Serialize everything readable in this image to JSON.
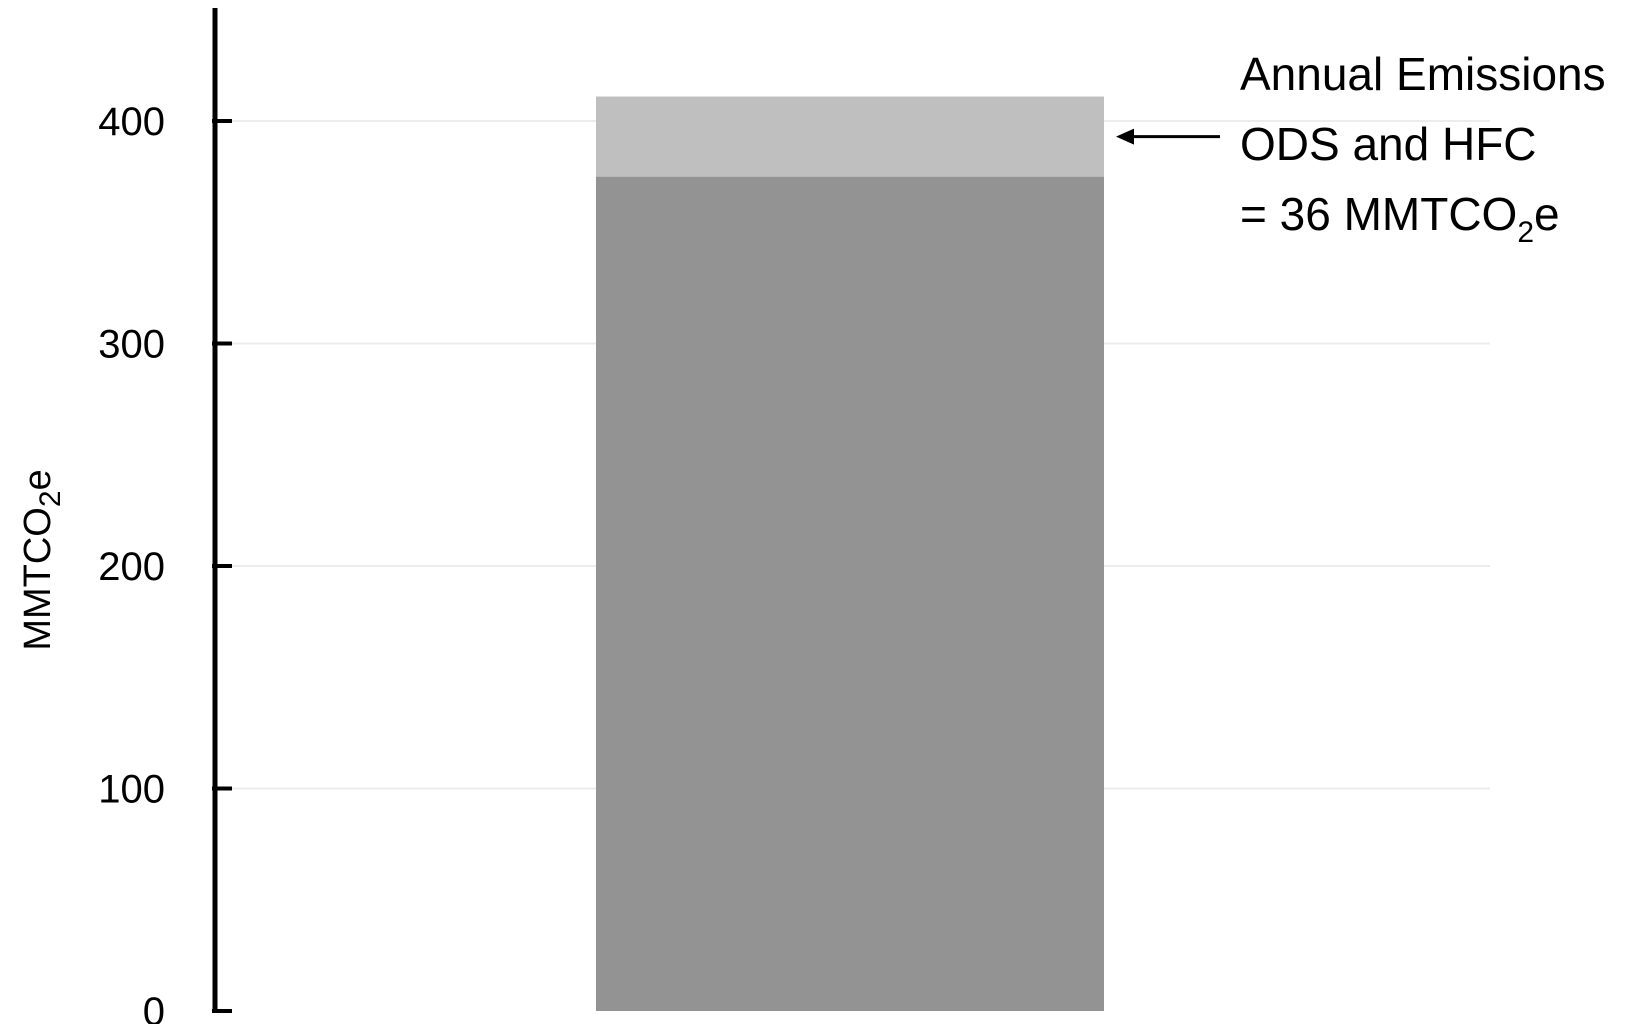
{
  "chart_data": {
    "type": "bar",
    "stacked": true,
    "categories": [
      ""
    ],
    "series": [
      {
        "values": [
          375
        ],
        "color": "#939393"
      },
      {
        "values": [
          36
        ],
        "color": "#bfbfbf"
      }
    ],
    "ylabel": {
      "main": "MMTCO",
      "sub": "2",
      "tail": "e"
    },
    "ylim": [
      0,
      450
    ],
    "yticks": [
      0,
      100,
      200,
      300,
      400
    ],
    "grid": true,
    "annotation": {
      "line1": "Annual Emissions",
      "line2": "ODS and HFC",
      "line3_pre": "= 36 MMTCO",
      "line3_sub": "2",
      "line3_post": "e",
      "arrow_target_value": 393
    }
  }
}
